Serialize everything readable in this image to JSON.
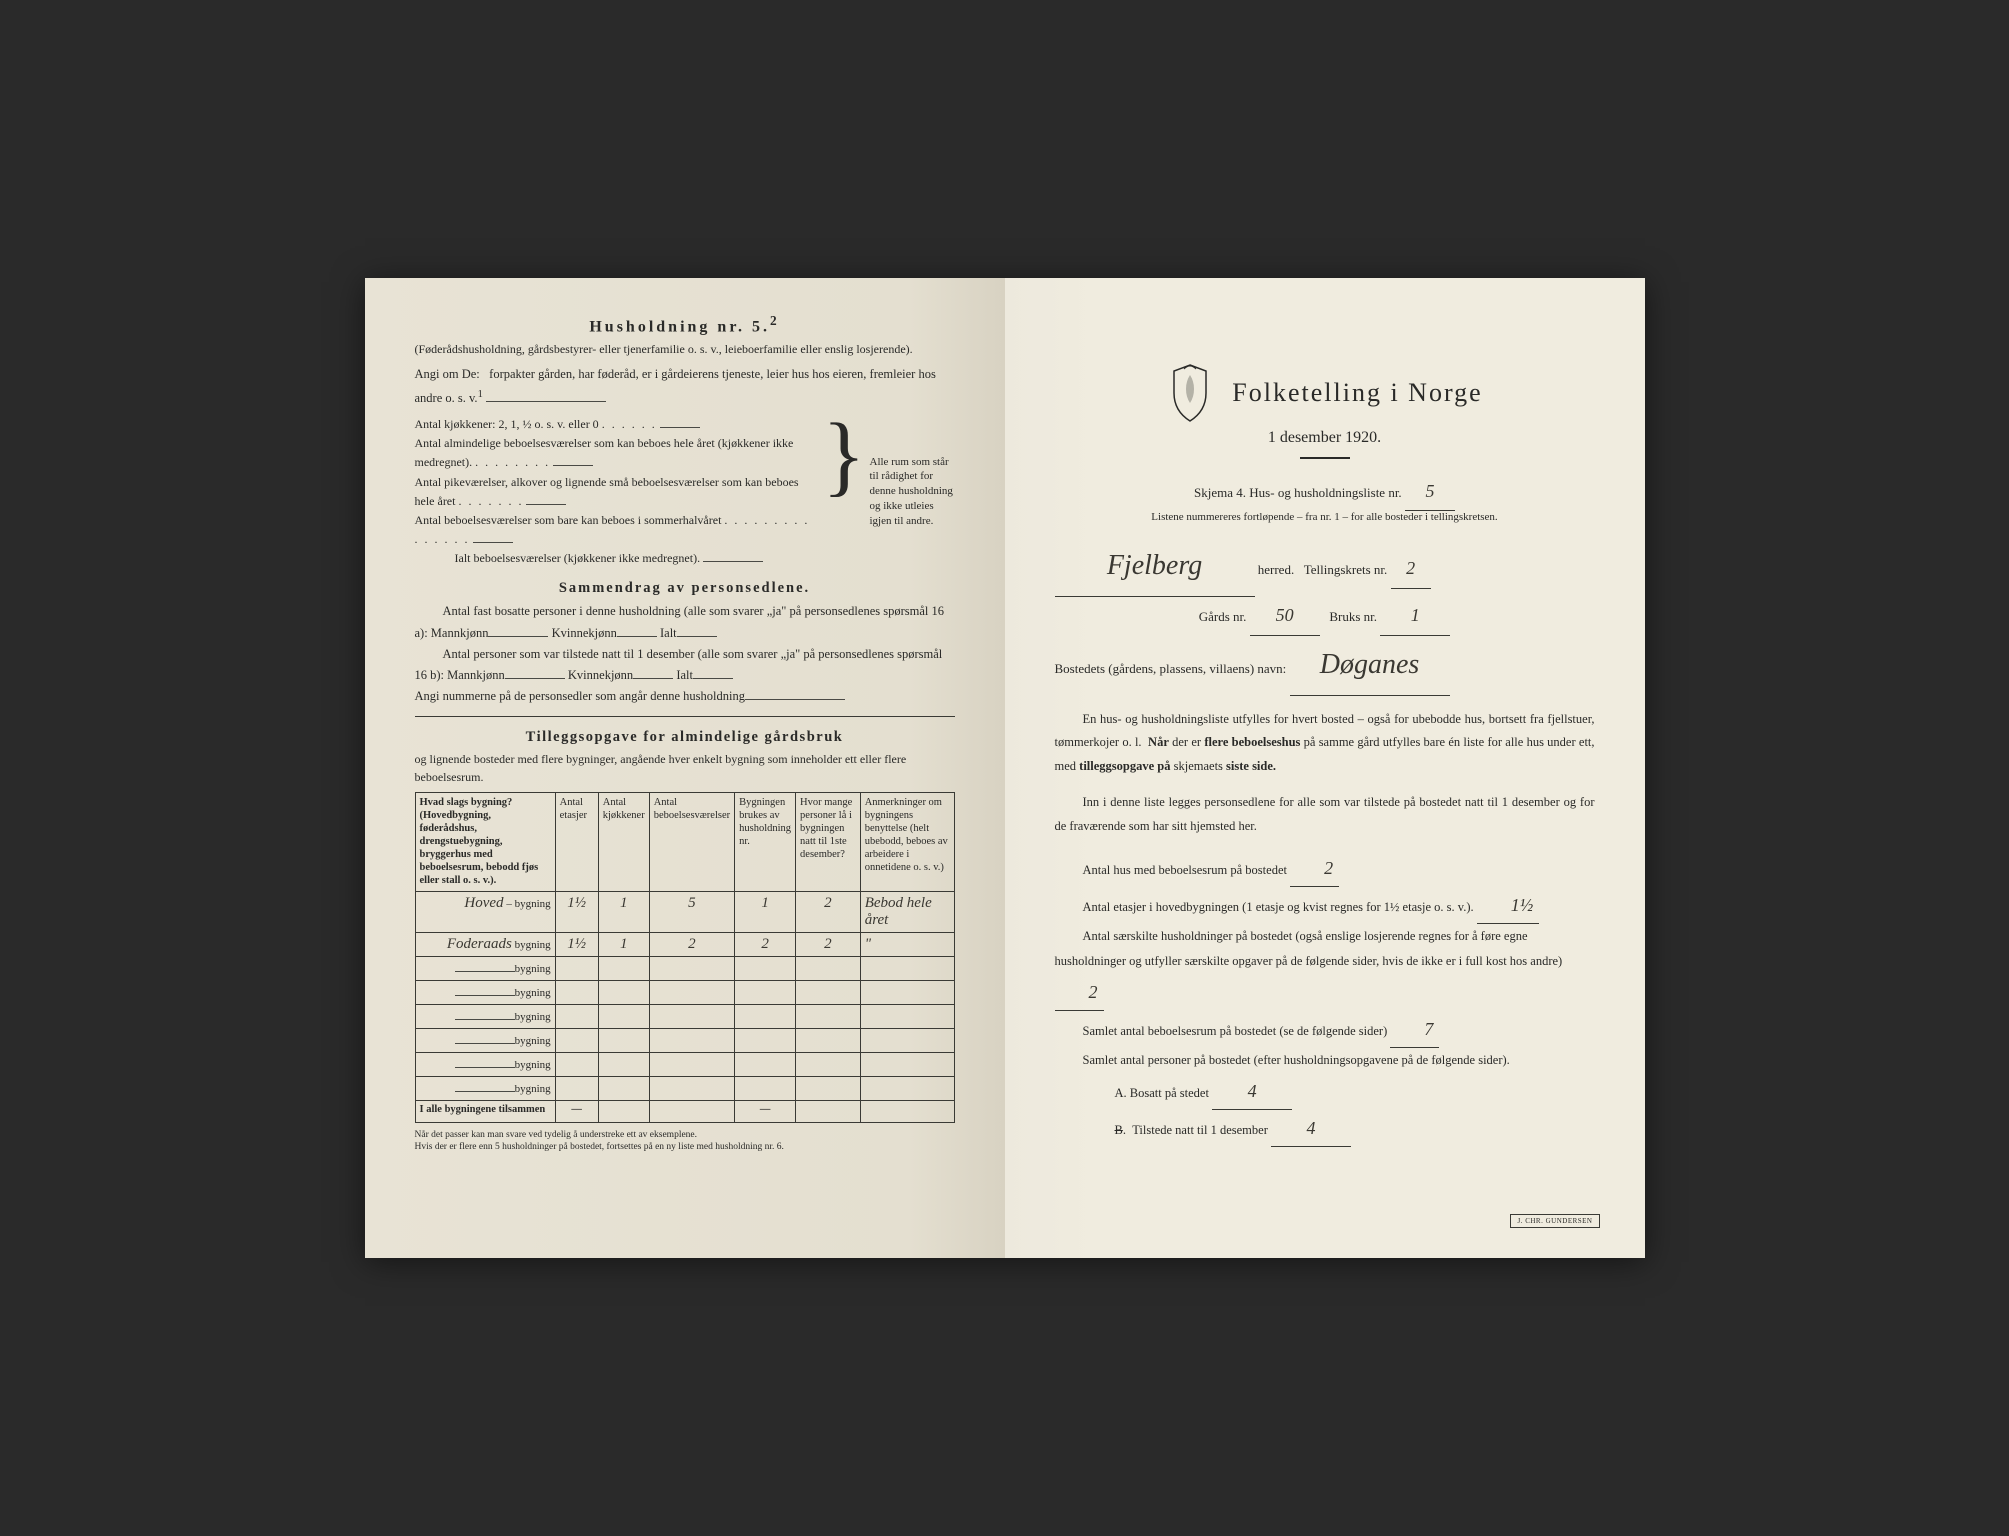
{
  "left": {
    "household_title": "Husholdning nr. 5.",
    "household_sup": "2",
    "household_sub": "(Føderådshusholdning, gårdsbestyrer- eller tjenerfamilie o. s. v., leieboerfamilie eller enslig losjerende).",
    "angi_intro": "Angi om De:",
    "angi_text": "forpakter gården, har føderåd, er i gårdeierens tjeneste, leier hus hos eieren, fremleier hos andre o. s. v.",
    "angi_sup": "1",
    "kjokken_line": "Antal kjøkkener: 2, 1, ½ o. s. v. eller 0",
    "rooms": [
      "Antal almindelige beboelsesværelser som kan beboes hele året (kjøkkener ikke medregnet).",
      "Antal pikeværelser, alkover og lignende små beboelsesværelser som kan beboes hele året",
      "Antal beboelsesværelser som bare kan beboes i sommerhalvåret",
      "Ialt beboelsesværelser (kjøkkener ikke medregnet)."
    ],
    "brace_text": "Alle rum som står til rådighet for denne husholdning og ikke utleies igjen til andre.",
    "sammendrag_title": "Sammendrag av personsedlene.",
    "sammendrag_1": "Antal fast bosatte personer i denne husholdning (alle som svarer „ja\" på personsedlenes spørsmål 16 a): Mannkjønn",
    "kvinne": "Kvinnekjønn",
    "ialt": "Ialt",
    "sammendrag_2": "Antal personer som var tilstede natt til 1 desember (alle som svarer „ja\" på personsedlenes spørsmål 16 b): Mannkjønn",
    "angi_nummer": "Angi nummerne på de personsedler som angår denne husholdning",
    "tillegg_title": "Tilleggsopgave for almindelige gårdsbruk",
    "tillegg_sub": "og lignende bosteder med flere bygninger, angående hver enkelt bygning som inneholder ett eller flere beboelsesrum.",
    "table": {
      "headers": [
        "Hvad slags bygning?\n(Hovedbygning, føderådshus, drengstuebygning, bryggerhus med beboelsesrum, bebodd fjøs eller stall o. s. v.).",
        "Antal etasjer",
        "Antal kjøkkener",
        "Antal beboelsesværelser",
        "Bygningen brukes av husholdning nr.",
        "Hvor mange personer lå i bygningen natt til 1ste desember?",
        "Anmerkninger om bygningens benyttelse (helt ubebodd, beboes av arbeidere i onnetidene o. s. v.)"
      ],
      "rows": [
        {
          "label": "Hoved",
          "suffix": "– bygning",
          "c1": "1½",
          "c2": "1",
          "c3": "5",
          "c4": "1",
          "c5": "2",
          "c6": "Bebod hele året"
        },
        {
          "label": "Foderaads",
          "suffix": "bygning",
          "c1": "1½",
          "c2": "1",
          "c3": "2",
          "c4": "2",
          "c5": "2",
          "c6": "\""
        },
        {
          "label": "",
          "suffix": "bygning",
          "c1": "",
          "c2": "",
          "c3": "",
          "c4": "",
          "c5": "",
          "c6": ""
        },
        {
          "label": "",
          "suffix": "bygning",
          "c1": "",
          "c2": "",
          "c3": "",
          "c4": "",
          "c5": "",
          "c6": ""
        },
        {
          "label": "",
          "suffix": "bygning",
          "c1": "",
          "c2": "",
          "c3": "",
          "c4": "",
          "c5": "",
          "c6": ""
        },
        {
          "label": "",
          "suffix": "bygning",
          "c1": "",
          "c2": "",
          "c3": "",
          "c4": "",
          "c5": "",
          "c6": ""
        },
        {
          "label": "",
          "suffix": "bygning",
          "c1": "",
          "c2": "",
          "c3": "",
          "c4": "",
          "c5": "",
          "c6": ""
        },
        {
          "label": "",
          "suffix": "bygning",
          "c1": "",
          "c2": "",
          "c3": "",
          "c4": "",
          "c5": "",
          "c6": ""
        }
      ],
      "total_label": "I alle bygningene tilsammen",
      "dash": "—"
    },
    "footnote": "Når det passer kan man svare ved tydelig å understreke ett av eksemplene.\nHvis der er flere enn 5 husholdninger på bostedet, fortsettes på en ny liste med husholdning nr. 6."
  },
  "right": {
    "main_title": "Folketelling i Norge",
    "date": "1 desember 1920.",
    "skjema": "Skjema 4.  Hus- og husholdningsliste nr.",
    "skjema_val": "5",
    "listene": "Listene nummereres fortløpende – fra nr. 1 – for alle bosteder i tellingskretsen.",
    "herred_val": "Fjelberg",
    "herred_label": "herred.",
    "tellingskrets": "Tellingskrets nr.",
    "tellingskrets_val": "2",
    "gards": "Gårds nr.",
    "gards_val": "50",
    "bruks": "Bruks nr.",
    "bruks_val": "1",
    "bosted": "Bostedets (gårdens, plassens, villaens) navn:",
    "bosted_val": "Døganes",
    "para1": "En hus- og husholdningsliste utfylles for hvert bosted – også for ubebodde hus, bortsett fra fjellstuer, tømmerkojer o. l.  Når der er flere beboelseshus på samme gård utfylles bare én liste for alle hus under ett, med tilleggsopgave på skjemaets siste side.",
    "para1_bold1": "Når",
    "para1_bold2": "flere beboelseshus",
    "para1_bold3": "tilleggsopgave på",
    "para1_bold4": "siste side.",
    "para2": "Inn i denne liste legges personsedlene for alle som var tilstede på bostedet natt til 1 desember og for de fraværende som har sitt hjemsted her.",
    "q1": "Antal hus med beboelsesrum på bostedet",
    "q1_val": "2",
    "q2a": "Antal etasjer i hovedbygningen (1 etasje og kvist regnes for 1½ etasje o. s. v.).",
    "q2_val": "1½",
    "q3": "Antal særskilte husholdninger på bostedet (også enslige losjerende regnes for å føre egne husholdninger og utfyller særskilte opgaver på de følgende sider, hvis de ikke er i full kost hos andre)",
    "q3_val": "2",
    "q4": "Samlet antal beboelsesrum på bostedet (se de følgende sider)",
    "q4_val": "7",
    "q5": "Samlet antal personer på bostedet (efter husholdningsopgavene på de følgende sider).",
    "qA": "A.  Bosatt på stedet",
    "qA_val": "4",
    "qB": "B.  Tilstede natt til 1 desember",
    "qB_val": "4",
    "stamp": "J. CHR. GUNDERSEN"
  },
  "colors": {
    "paper_left": "#e4dfd0",
    "paper_right": "#f0ecdf",
    "ink": "#2a2a28",
    "handwriting": "#3a3832"
  }
}
